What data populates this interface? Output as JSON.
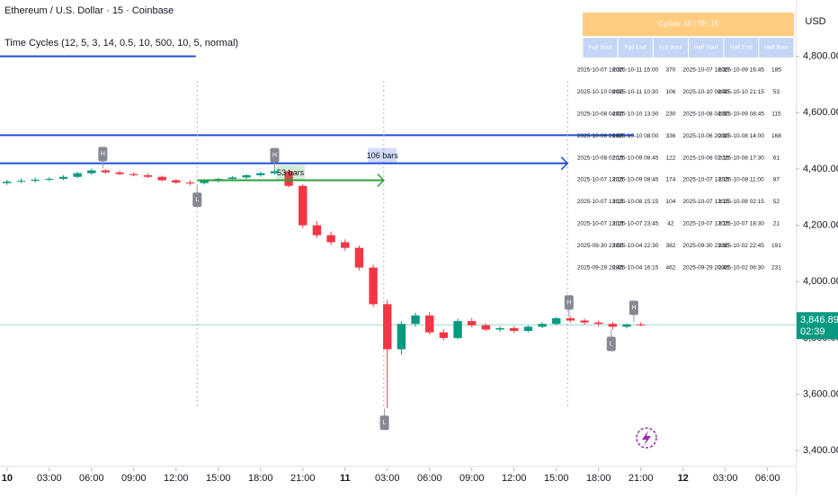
{
  "chart_data": {
    "type": "candlestick",
    "title": "Ethereum / U.S. Dollar · 15 · Coinbase",
    "indicator": "Time Cycles (12, 5, 3, 14, 0.5, 10, 500, 10, 5, normal)",
    "currency": "USD",
    "up_color": "#089981",
    "down_color": "#f23645",
    "x": [
      0,
      1,
      2,
      3,
      4,
      5,
      6,
      7,
      8,
      9,
      10,
      11,
      12,
      13,
      14,
      15,
      16,
      17,
      18,
      19,
      20,
      21,
      22,
      23,
      24,
      25,
      26,
      27,
      28,
      29,
      30,
      31,
      32,
      33,
      34,
      35,
      36,
      37,
      38,
      39,
      40,
      41,
      42,
      43,
      44,
      45
    ],
    "open": [
      4350,
      4355,
      4358,
      4362,
      4365,
      4372,
      4385,
      4395,
      4388,
      4382,
      4378,
      4372,
      4360,
      4352,
      4350,
      4358,
      4365,
      4370,
      4378,
      4385,
      4392,
      4340,
      4200,
      4165,
      4140,
      4120,
      4050,
      3920,
      3760,
      3850,
      3880,
      3820,
      3800,
      3860,
      3845,
      3830,
      3835,
      3825,
      3840,
      3850,
      3870,
      3862,
      3855,
      3850,
      3840,
      3848
    ],
    "high": [
      4362,
      4366,
      4370,
      4372,
      4378,
      4390,
      4402,
      4400,
      4394,
      4388,
      4384,
      4376,
      4365,
      4360,
      4362,
      4368,
      4375,
      4382,
      4390,
      4398,
      4396,
      4345,
      4215,
      4178,
      4150,
      4128,
      4060,
      3935,
      3860,
      3890,
      3892,
      3830,
      3868,
      3870,
      3852,
      3842,
      3842,
      3845,
      3856,
      3875,
      3876,
      3868,
      3862,
      3856,
      3852,
      3856
    ],
    "low": [
      4344,
      4350,
      4352,
      4356,
      4360,
      4368,
      4380,
      4384,
      4378,
      4374,
      4368,
      4356,
      4346,
      4342,
      4345,
      4352,
      4360,
      4365,
      4372,
      4380,
      4335,
      4190,
      4155,
      4130,
      4110,
      4040,
      3910,
      3550,
      3740,
      3840,
      3812,
      3792,
      3795,
      3838,
      3825,
      3822,
      3818,
      3820,
      3835,
      3845,
      3855,
      3848,
      3842,
      3830,
      3834,
      3842
    ],
    "close": [
      4355,
      4358,
      4362,
      4365,
      4372,
      4385,
      4395,
      4388,
      4382,
      4378,
      4372,
      4360,
      4352,
      4350,
      4358,
      4365,
      4370,
      4378,
      4385,
      4392,
      4340,
      4200,
      4165,
      4140,
      4120,
      4050,
      3920,
      3760,
      3850,
      3880,
      3820,
      3800,
      3860,
      3845,
      3830,
      3835,
      3825,
      3840,
      3850,
      3870,
      3862,
      3855,
      3850,
      3840,
      3848,
      3846.89
    ],
    "xlim": [
      -0.5,
      56
    ],
    "xticks": [
      {
        "value": 0,
        "label": "10"
      },
      {
        "value": 3,
        "label": "03:00"
      },
      {
        "value": 6,
        "label": "06:00"
      },
      {
        "value": 9,
        "label": "09:00"
      },
      {
        "value": 12,
        "label": "12:00"
      },
      {
        "value": 15,
        "label": "15:00"
      },
      {
        "value": 18,
        "label": "18:00"
      },
      {
        "value": 21,
        "label": "21:00"
      },
      {
        "value": 24,
        "label": "11"
      },
      {
        "value": 27,
        "label": "03:00"
      },
      {
        "value": 30,
        "label": "06:00"
      },
      {
        "value": 33,
        "label": "09:00"
      },
      {
        "value": 36,
        "label": "12:00"
      },
      {
        "value": 39,
        "label": "15:00"
      },
      {
        "value": 42,
        "label": "18:00"
      },
      {
        "value": 45,
        "label": "21:00"
      },
      {
        "value": 48,
        "label": "12"
      },
      {
        "value": 51,
        "label": "03:00"
      },
      {
        "value": 54,
        "label": "06:00"
      }
    ],
    "ylim": [
      3340,
      5000
    ],
    "yticks": [
      {
        "value": 3400,
        "label": "3,400.00"
      },
      {
        "value": 3600,
        "label": "3,600.00"
      },
      {
        "value": 3800,
        "label": "3,800.00"
      },
      {
        "value": 4000,
        "label": "4,000.00"
      },
      {
        "value": 4200,
        "label": "4,200.00"
      },
      {
        "value": 4400,
        "label": "4,400.00"
      },
      {
        "value": 4600,
        "label": "4,600.00"
      },
      {
        "value": 4800,
        "label": "4,800.00"
      }
    ],
    "last_price": {
      "value": 3846.89,
      "label": "3,846.89"
    },
    "countdown": "02:39",
    "levels": [
      {
        "value": 4800,
        "end": 13.4
      },
      {
        "value": 4520,
        "end": 44.5
      }
    ],
    "cycles": [
      {
        "start": 13.5,
        "end": 26.75,
        "level": 4360,
        "label": "53 bars",
        "color": "#2e9e3e"
      },
      {
        "start": 13.5,
        "end": 39.8,
        "level": 4420,
        "label": "106 bars",
        "color": "#1e4fd8"
      }
    ],
    "cycle_marks": [
      13.5,
      26.75,
      39.8
    ],
    "markers": [
      {
        "x": 6.8,
        "price": 4402,
        "label": "H"
      },
      {
        "x": 13.5,
        "price": 4342,
        "label": "L"
      },
      {
        "x": 19,
        "price": 4398,
        "label": "H"
      },
      {
        "x": 26.8,
        "price": 3550,
        "label": "L"
      },
      {
        "x": 39.9,
        "price": 3875,
        "label": "H"
      },
      {
        "x": 42.9,
        "price": 3830,
        "label": "L"
      },
      {
        "x": 44.5,
        "price": 3856,
        "label": "H"
      }
    ]
  },
  "table": {
    "title": "Cycles: 10 | TF: 15",
    "columns": [
      "Full Start",
      "Full End",
      "Full Bars",
      "Half Start",
      "Half End",
      "Half Bars"
    ],
    "rows": [
      [
        "2025-10-07 18:30",
        "2025-10-11 15:00",
        370,
        "2025-10-07 18:30",
        "2025-10-09 16:45",
        185
      ],
      [
        "2025-10-10 08:00",
        "2025-10-11 10:30",
        106,
        "2025-10-10 08:00",
        "2025-10-10 21:15",
        53
      ],
      [
        "2025-10-08 04:00",
        "2025-10-10 13:30",
        230,
        "2025-10-08 04:00",
        "2025-10-09 08:45",
        115
      ],
      [
        "2025-10-06 20:00",
        "2025-10-10 08:00",
        336,
        "2025-10-06 20:00",
        "2025-10-08 14:00",
        168
      ],
      [
        "2025-10-08 02:15",
        "2025-10-09 08:45",
        122,
        "2025-10-08 02:15",
        "2025-10-08 17:30",
        61
      ],
      [
        "2025-10-07 13:15",
        "2025-10-09 08:45",
        174,
        "2025-10-07 13:15",
        "2025-10-08 11:00",
        87
      ],
      [
        "2025-10-07 13:15",
        "2025-10-08 15:15",
        104,
        "2025-10-07 13:15",
        "2025-10-08 02:15",
        52
      ],
      [
        "2025-10-07 13:15",
        "2025-10-07 23:45",
        42,
        "2025-10-07 13:15",
        "2025-10-07 18:30",
        21
      ],
      [
        "2025-09-30 23:00",
        "2025-10-04 22:30",
        382,
        "2025-09-30 23:00",
        "2025-10-02 22:45",
        191
      ],
      [
        "2025-09-29 20:45",
        "2025-10-04 16:15",
        462,
        "2025-09-29 20:45",
        "2025-10-02 06:30",
        231
      ]
    ]
  }
}
